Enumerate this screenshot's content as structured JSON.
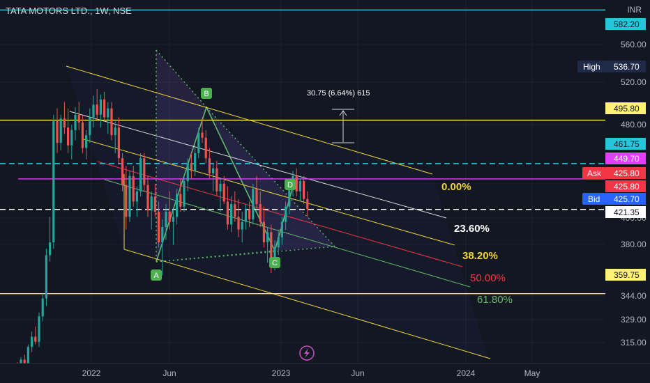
{
  "header": {
    "symbol_title": "TATA MOTORS LTD., 1W, NSE",
    "currency": "INR"
  },
  "price_axis": {
    "ticks": [
      "560.00",
      "520.00",
      "480.00",
      "400.00",
      "380.00",
      "344.00",
      "329.00",
      "315.00"
    ],
    "labels": [
      {
        "text": "582.20",
        "bg": "#26c6da",
        "fg": "#131722"
      },
      {
        "text": "536.70",
        "bg": "#1e2a48",
        "fg": "#ffffff",
        "tag": "High"
      },
      {
        "text": "495.80",
        "bg": "#fff176",
        "fg": "#131722"
      },
      {
        "text": "461.75",
        "bg": "#26c6da",
        "fg": "#131722"
      },
      {
        "text": "449.70",
        "bg": "#e040fb",
        "fg": "#ffffff"
      },
      {
        "text": "425.80",
        "bg": "#f23645",
        "fg": "#ffffff",
        "tag": "Ask"
      },
      {
        "text": "425.80",
        "bg": "#f23645",
        "fg": "#ffffff"
      },
      {
        "text": "425.70",
        "bg": "#2962ff",
        "fg": "#ffffff",
        "tag": "Bid"
      },
      {
        "text": "421.35",
        "bg": "#ffffff",
        "fg": "#131722"
      },
      {
        "text": "359.75",
        "bg": "#fff176",
        "fg": "#131722"
      }
    ]
  },
  "time_axis": {
    "ticks": [
      "2022",
      "Jun",
      "2023",
      "Jun",
      "2024",
      "May"
    ]
  },
  "fib_labels": [
    {
      "text": "0.00%",
      "color": "#f0d43a"
    },
    {
      "text": "23.60%",
      "color": "#ffffff"
    },
    {
      "text": "38.20%",
      "color": "#f0d43a"
    },
    {
      "text": "50.00%",
      "color": "#f23645"
    },
    {
      "text": "61.80%",
      "color": "#66bb6a"
    }
  ],
  "pattern_points": [
    "A",
    "B",
    "C",
    "D"
  ],
  "measure_label": "30.75 (6.64%) 615",
  "colors": {
    "up": "#26a69a",
    "down": "#ef5350",
    "yellow": "#ffeb3b",
    "cyan": "#26c6da",
    "magenta": "#e040fb"
  },
  "chart_data": {
    "type": "candlestick",
    "x_ticks": [
      "2022",
      "Jun",
      "2023",
      "Jun",
      "2024",
      "May"
    ],
    "ylim": [
      305,
      590
    ],
    "ohlc": [
      [
        300,
        305,
        290,
        298
      ],
      [
        298,
        302,
        292,
        296
      ],
      [
        296,
        299,
        288,
        294
      ],
      [
        294,
        304,
        292,
        302
      ],
      [
        302,
        306,
        296,
        300
      ],
      [
        300,
        310,
        298,
        308
      ],
      [
        308,
        312,
        302,
        304
      ],
      [
        304,
        320,
        300,
        318
      ],
      [
        318,
        330,
        314,
        326
      ],
      [
        326,
        334,
        320,
        322
      ],
      [
        322,
        345,
        318,
        342
      ],
      [
        342,
        360,
        338,
        356
      ],
      [
        356,
        395,
        350,
        390
      ],
      [
        390,
        420,
        385,
        400
      ],
      [
        400,
        500,
        395,
        495
      ],
      [
        495,
        505,
        470,
        478
      ],
      [
        478,
        500,
        472,
        497
      ],
      [
        497,
        510,
        485,
        490
      ],
      [
        490,
        505,
        470,
        476
      ],
      [
        476,
        492,
        465,
        488
      ],
      [
        488,
        506,
        480,
        500
      ],
      [
        500,
        510,
        488,
        494
      ],
      [
        494,
        500,
        470,
        474
      ],
      [
        474,
        488,
        465,
        484
      ],
      [
        484,
        505,
        478,
        498
      ],
      [
        498,
        515,
        490,
        508
      ],
      [
        508,
        520,
        495,
        500
      ],
      [
        500,
        516,
        490,
        512
      ],
      [
        512,
        518,
        495,
        498
      ],
      [
        498,
        510,
        485,
        505
      ],
      [
        505,
        510,
        480,
        484
      ],
      [
        484,
        496,
        470,
        490
      ],
      [
        490,
        498,
        462,
        466
      ],
      [
        466,
        470,
        440,
        445
      ],
      [
        445,
        460,
        410,
        420
      ],
      [
        420,
        456,
        416,
        452
      ],
      [
        452,
        460,
        428,
        432
      ],
      [
        432,
        444,
        420,
        440
      ],
      [
        440,
        470,
        436,
        466
      ],
      [
        466,
        470,
        440,
        445
      ],
      [
        445,
        452,
        420,
        425
      ],
      [
        425,
        440,
        410,
        436
      ],
      [
        436,
        446,
        420,
        424
      ],
      [
        424,
        432,
        396,
        400
      ],
      [
        400,
        418,
        374,
        412
      ],
      [
        412,
        430,
        402,
        424
      ],
      [
        424,
        440,
        410,
        416
      ],
      [
        416,
        426,
        398,
        420
      ],
      [
        420,
        442,
        414,
        438
      ],
      [
        438,
        450,
        424,
        428
      ],
      [
        428,
        452,
        424,
        448
      ],
      [
        448,
        466,
        440,
        462
      ],
      [
        462,
        470,
        450,
        456
      ],
      [
        456,
        476,
        452,
        470
      ],
      [
        470,
        490,
        466,
        486
      ],
      [
        486,
        498,
        478,
        482
      ],
      [
        482,
        488,
        462,
        466
      ],
      [
        466,
        474,
        450,
        454
      ],
      [
        454,
        462,
        440,
        458
      ],
      [
        458,
        464,
        436,
        440
      ],
      [
        440,
        450,
        424,
        446
      ],
      [
        446,
        452,
        430,
        432
      ],
      [
        432,
        444,
        410,
        414
      ],
      [
        414,
        436,
        408,
        430
      ],
      [
        430,
        440,
        416,
        420
      ],
      [
        420,
        434,
        404,
        410
      ],
      [
        410,
        424,
        400,
        416
      ],
      [
        416,
        430,
        410,
        426
      ],
      [
        426,
        432,
        412,
        418
      ],
      [
        418,
        446,
        414,
        442
      ],
      [
        442,
        452,
        426,
        430
      ],
      [
        430,
        440,
        412,
        416
      ],
      [
        416,
        428,
        396,
        400
      ],
      [
        400,
        412,
        384,
        408
      ],
      [
        408,
        414,
        376,
        380
      ],
      [
        380,
        402,
        378,
        396
      ],
      [
        396,
        410,
        390,
        404
      ],
      [
        404,
        420,
        398,
        416
      ],
      [
        416,
        432,
        410,
        428
      ],
      [
        428,
        446,
        422,
        442
      ],
      [
        442,
        456,
        436,
        452
      ],
      [
        452,
        458,
        436,
        440
      ],
      [
        440,
        450,
        432,
        448
      ],
      [
        448,
        452,
        430,
        434
      ],
      [
        434,
        440,
        420,
        426
      ]
    ],
    "horizontal_levels": [
      {
        "value": 582.2,
        "color": "#26c6da",
        "style": "solid"
      },
      {
        "value": 495.8,
        "color": "#ffeb3b",
        "style": "solid"
      },
      {
        "value": 461.75,
        "color": "#26c6da",
        "style": "dashed"
      },
      {
        "value": 449.7,
        "color": "#e040fb",
        "style": "solid"
      },
      {
        "value": 425.8,
        "color": "#ffffff",
        "style": "dashed"
      },
      {
        "value": 359.75,
        "color": "#ffeb3b",
        "style": "solid"
      }
    ],
    "high": 536.7,
    "ask": 425.8,
    "bid": 425.7,
    "last": 425.8
  }
}
